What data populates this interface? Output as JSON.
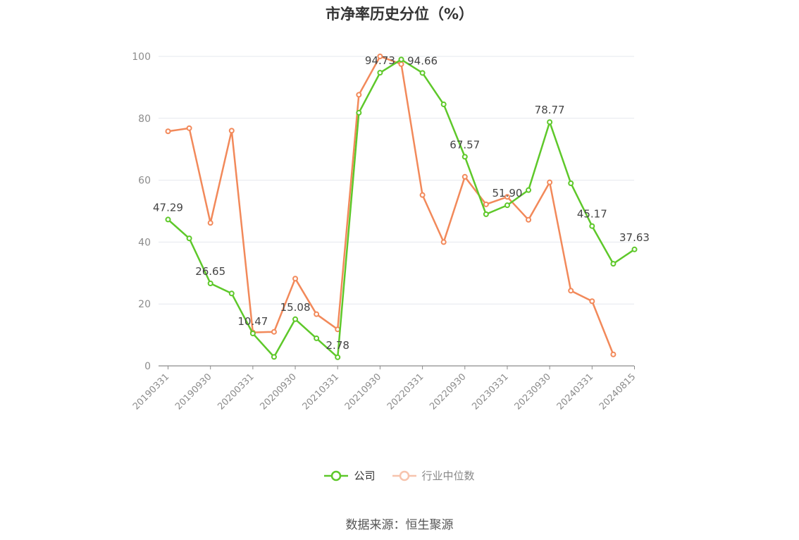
{
  "title": "市净率历史分位（%）",
  "source": "数据来源：恒生聚源",
  "chart_data": {
    "type": "line",
    "ylim": [
      0,
      100
    ],
    "yticks": [
      "0",
      "20",
      "40",
      "60",
      "80",
      "100"
    ],
    "xtick_labels": [
      "20190331",
      "20190930",
      "20200331",
      "20200930",
      "20210331",
      "20210930",
      "20220331",
      "20220930",
      "20230331",
      "20230930",
      "20240331",
      "20240815"
    ],
    "colors": {
      "company": "#5ec82a",
      "industry": "#f2895a"
    },
    "series": [
      {
        "name": "公司",
        "values": [
          47.29,
          41.2,
          26.65,
          23.4,
          10.47,
          2.9,
          15.08,
          8.9,
          2.78,
          81.8,
          94.73,
          99.0,
          94.66,
          84.5,
          67.57,
          49.0,
          51.9,
          56.8,
          78.77,
          59.0,
          45.17,
          33.0,
          37.63
        ],
        "labels": [
          "47.29",
          "",
          "26.65",
          "",
          "10.47",
          "",
          "15.08",
          "",
          "2.78",
          "",
          "94.73",
          "",
          "94.66",
          "",
          "67.57",
          "",
          "51.90",
          "",
          "78.77",
          "",
          "45.17",
          "",
          "37.63"
        ]
      },
      {
        "name": "行业中位数",
        "values": [
          75.8,
          76.8,
          46.2,
          76.0,
          10.8,
          11.0,
          28.2,
          16.7,
          11.8,
          87.6,
          100.0,
          97.5,
          55.2,
          40.0,
          61.1,
          52.2,
          54.6,
          47.2,
          59.3,
          24.3,
          20.9,
          3.7,
          null
        ]
      }
    ]
  }
}
